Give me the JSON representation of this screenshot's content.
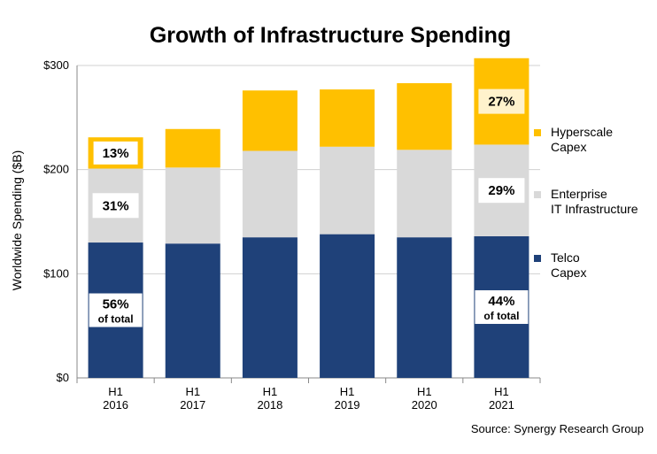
{
  "chart_data": {
    "type": "bar",
    "stacked": true,
    "title": "Growth of Infrastructure Spending",
    "ylabel": "Worldwide Spending ($B)",
    "xlabel": "",
    "ylim": [
      0,
      300
    ],
    "yticks": [
      "$0",
      "$100",
      "$200",
      "$300"
    ],
    "ytick_values": [
      0,
      100,
      200,
      300
    ],
    "grid": true,
    "legend_position": "right",
    "categories": [
      "H1\n2016",
      "H1\n2017",
      "H1\n2018",
      "H1\n2019",
      "H1\n2020",
      "H1\n2021"
    ],
    "category_lines": [
      [
        "H1",
        "2016"
      ],
      [
        "H1",
        "2017"
      ],
      [
        "H1",
        "2018"
      ],
      [
        "H1",
        "2019"
      ],
      [
        "H1",
        "2020"
      ],
      [
        "H1",
        "2021"
      ]
    ],
    "series": [
      {
        "name": "Telco Capex",
        "name_lines": [
          "Telco",
          "Capex"
        ],
        "color": "#1f4179",
        "values": [
          130,
          129,
          135,
          138,
          135,
          136
        ]
      },
      {
        "name": "Enterprise IT Infrastructure",
        "name_lines": [
          "Enterprise",
          "IT Infrastructure"
        ],
        "color": "#d9d9d9",
        "values": [
          71,
          73,
          83,
          84,
          84,
          88
        ]
      },
      {
        "name": "Hyperscale Capex",
        "name_lines": [
          "Hyperscale",
          "Capex"
        ],
        "color": "#ffc000",
        "values": [
          30,
          37,
          58,
          55,
          64,
          83
        ]
      }
    ],
    "annotations": [
      {
        "category": 0,
        "series": 2,
        "text": "13%",
        "sub": "",
        "box_border": "#ffc000",
        "box_fill": "#ffffff"
      },
      {
        "category": 0,
        "series": 1,
        "text": "31%",
        "sub": "",
        "box_border": "",
        "box_fill": "#ffffff"
      },
      {
        "category": 0,
        "series": 0,
        "text": "56%",
        "sub": "of total",
        "box_border": "",
        "box_fill": "#ffffff"
      },
      {
        "category": 5,
        "series": 2,
        "text": "27%",
        "sub": "",
        "box_border": "",
        "box_fill": "#fff2cc"
      },
      {
        "category": 5,
        "series": 1,
        "text": "29%",
        "sub": "",
        "box_border": "",
        "box_fill": "#ffffff"
      },
      {
        "category": 5,
        "series": 0,
        "text": "44%",
        "sub": "of total",
        "box_border": "",
        "box_fill": "#ffffff"
      }
    ]
  },
  "source": "Source: Synergy Research Group"
}
